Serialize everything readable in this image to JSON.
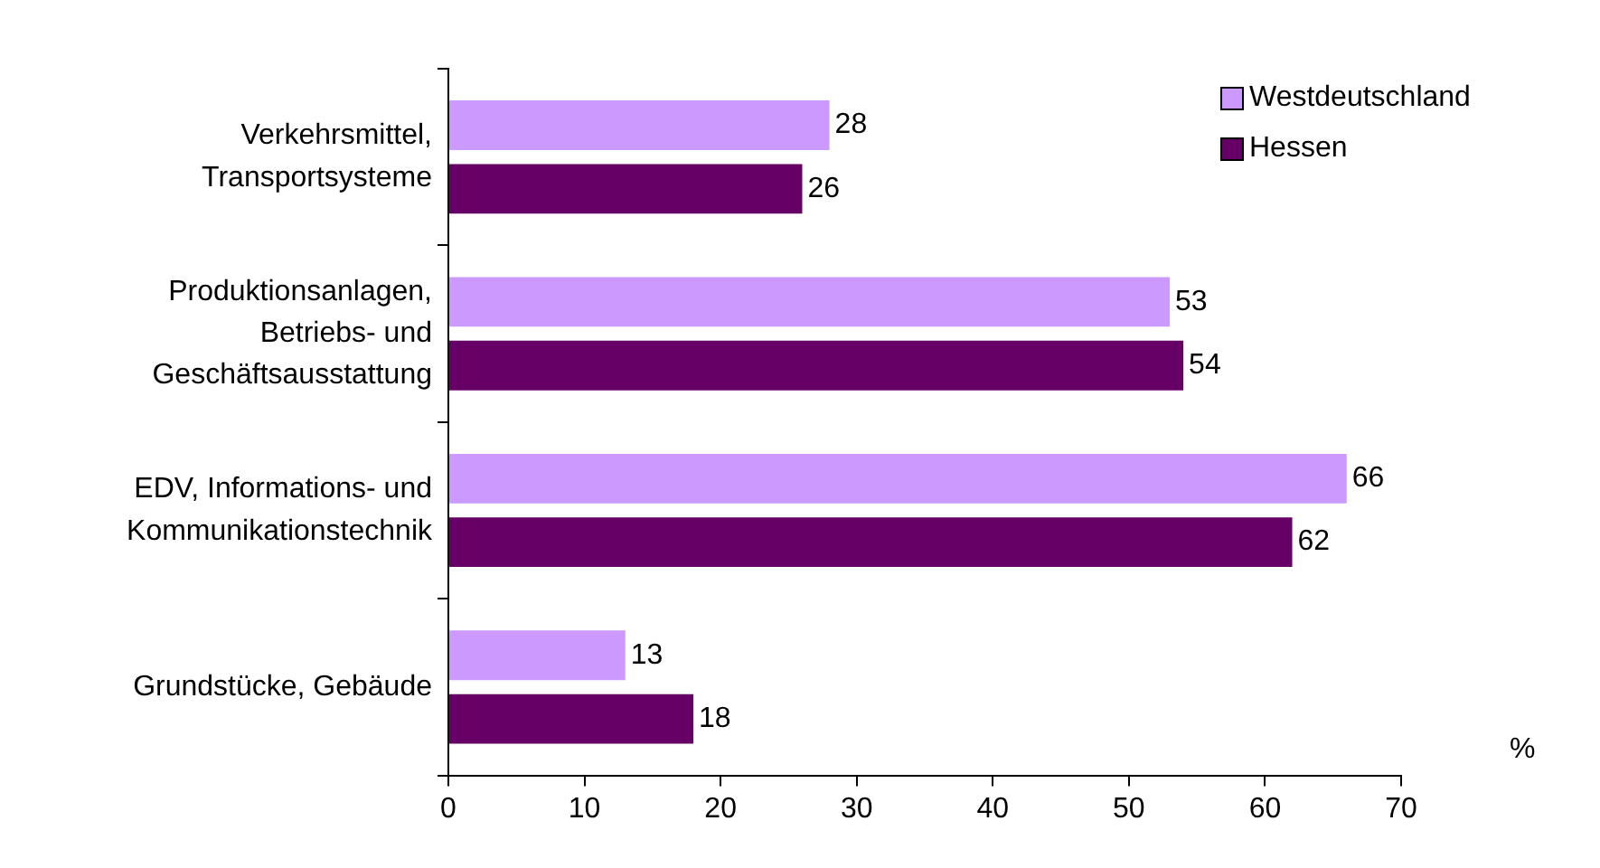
{
  "chart_data": {
    "type": "bar",
    "orientation": "horizontal",
    "categories": [
      "Verkehrsmittel,\nTransportsysteme",
      "Produktionsanlagen,\nBetriebs- und\nGeschäftsausstattung",
      "EDV, Informations- und\nKommunikationstechnik",
      "Grundstücke, Gebäude"
    ],
    "series": [
      {
        "name": "Westdeutschland",
        "color": "#cc99ff",
        "values": [
          28,
          53,
          66,
          13
        ]
      },
      {
        "name": "Hessen",
        "color": "#660066",
        "values": [
          26,
          54,
          62,
          18
        ]
      }
    ],
    "xlim": [
      0,
      70
    ],
    "xticks": [
      0,
      10,
      20,
      30,
      40,
      50,
      60,
      70
    ],
    "xlabel": "%",
    "data_labels": true,
    "grid": false,
    "legend": "top right"
  }
}
